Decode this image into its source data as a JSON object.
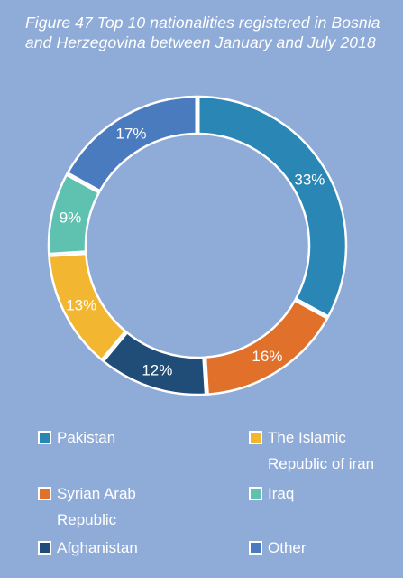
{
  "chart_data": {
    "type": "pie",
    "title": "Figure 47 Top 10 nationalities registered in Bosnia and Herzegovina between January and July 2018",
    "donut": true,
    "slices": [
      {
        "label": "Pakistan",
        "value": 33,
        "text": "33%",
        "color": "#2a87b5"
      },
      {
        "label": "Syrian Arab Republic",
        "value": 16,
        "text": "16%",
        "color": "#e0702a"
      },
      {
        "label": "Afghanistan",
        "value": 12,
        "text": "12%",
        "color": "#1f4d78"
      },
      {
        "label": "The Islamic Republic of iran",
        "value": 13,
        "text": "13%",
        "color": "#f2b630"
      },
      {
        "label": "Iraq",
        "value": 9,
        "text": "9%",
        "color": "#5fc1b0"
      },
      {
        "label": "Other",
        "value": 17,
        "text": "17%",
        "color": "#4a7bbf"
      }
    ],
    "legend_placement": "bottom"
  }
}
